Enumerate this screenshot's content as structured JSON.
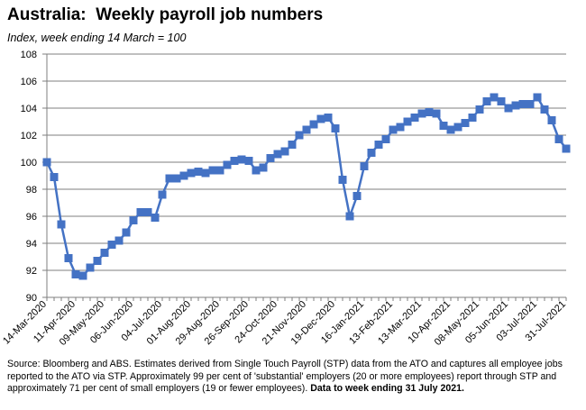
{
  "header": {
    "title": "Australia:  Weekly payroll job numbers",
    "subtitle": "Index, week ending 14 March = 100"
  },
  "source": {
    "text": "Source: Bloomberg and ABS.  Estimates derived from Single Touch Payroll (STP) data from the ATO and captures all employee jobs reported to the ATO via STP.  Approximately 99 per cent of 'substantial' employers (20 or more employees) report through STP and approximately 71 per cent of small employers (19 or fewer employees). ",
    "bold": "Data to week ending 31 July 2021."
  },
  "colors": {
    "series": "#4472C4",
    "grid": "#7f7f7f",
    "axis": "#7f7f7f"
  },
  "chart_data": {
    "type": "line",
    "title": "Australia:  Weekly payroll job numbers",
    "subtitle": "Index, week ending 14 March = 100",
    "ylim": [
      90,
      108
    ],
    "yticks": [
      90,
      92,
      94,
      96,
      98,
      100,
      102,
      104,
      106,
      108
    ],
    "grid": "horizontal",
    "marker": "square",
    "xtick_labels": [
      "14-Mar-2020",
      "11-Apr-2020",
      "09-May-2020",
      "06-Jun-2020",
      "04-Jul-2020",
      "01-Aug-2020",
      "29-Aug-2020",
      "26-Sep-2020",
      "24-Oct-2020",
      "21-Nov-2020",
      "19-Dec-2020",
      "16-Jan-2021",
      "13-Feb-2021",
      "13-Mar-2021",
      "10-Apr-2021",
      "08-May-2021",
      "05-Jun-2021",
      "03-Jul-2021",
      "31-Jul-2021"
    ],
    "x": [
      "2020-03-14",
      "2020-03-21",
      "2020-03-28",
      "2020-04-04",
      "2020-04-11",
      "2020-04-18",
      "2020-04-25",
      "2020-05-02",
      "2020-05-09",
      "2020-05-16",
      "2020-05-23",
      "2020-05-30",
      "2020-06-06",
      "2020-06-13",
      "2020-06-20",
      "2020-06-27",
      "2020-07-04",
      "2020-07-11",
      "2020-07-18",
      "2020-07-25",
      "2020-08-01",
      "2020-08-08",
      "2020-08-15",
      "2020-08-22",
      "2020-08-29",
      "2020-09-05",
      "2020-09-12",
      "2020-09-19",
      "2020-09-26",
      "2020-10-03",
      "2020-10-10",
      "2020-10-17",
      "2020-10-24",
      "2020-10-31",
      "2020-11-07",
      "2020-11-14",
      "2020-11-21",
      "2020-11-28",
      "2020-12-05",
      "2020-12-12",
      "2020-12-19",
      "2020-12-26",
      "2021-01-02",
      "2021-01-09",
      "2021-01-16",
      "2021-01-23",
      "2021-01-30",
      "2021-02-06",
      "2021-02-13",
      "2021-02-20",
      "2021-02-27",
      "2021-03-06",
      "2021-03-13",
      "2021-03-20",
      "2021-03-27",
      "2021-04-03",
      "2021-04-10",
      "2021-04-17",
      "2021-04-24",
      "2021-05-01",
      "2021-05-08",
      "2021-05-15",
      "2021-05-22",
      "2021-05-29",
      "2021-06-05",
      "2021-06-12",
      "2021-06-19",
      "2021-06-26",
      "2021-07-03",
      "2021-07-10",
      "2021-07-17",
      "2021-07-24",
      "2021-07-31"
    ],
    "series": [
      {
        "name": "",
        "values": [
          100.0,
          98.9,
          95.4,
          92.9,
          91.7,
          91.6,
          92.2,
          92.7,
          93.3,
          93.9,
          94.2,
          94.8,
          95.7,
          96.3,
          96.3,
          95.9,
          97.6,
          98.8,
          98.8,
          99.0,
          99.2,
          99.3,
          99.2,
          99.4,
          99.4,
          99.8,
          100.1,
          100.2,
          100.1,
          99.4,
          99.6,
          100.3,
          100.6,
          100.8,
          101.3,
          102.0,
          102.4,
          102.8,
          103.2,
          103.3,
          102.5,
          98.7,
          96.0,
          97.5,
          99.7,
          100.7,
          101.3,
          101.7,
          102.4,
          102.6,
          103.0,
          103.3,
          103.6,
          103.7,
          103.6,
          102.7,
          102.4,
          102.6,
          102.9,
          103.3,
          103.9,
          104.5,
          104.8,
          104.5,
          104.0,
          104.2,
          104.3,
          104.3,
          104.8,
          103.9,
          103.1,
          101.7,
          101.0
        ]
      }
    ]
  }
}
